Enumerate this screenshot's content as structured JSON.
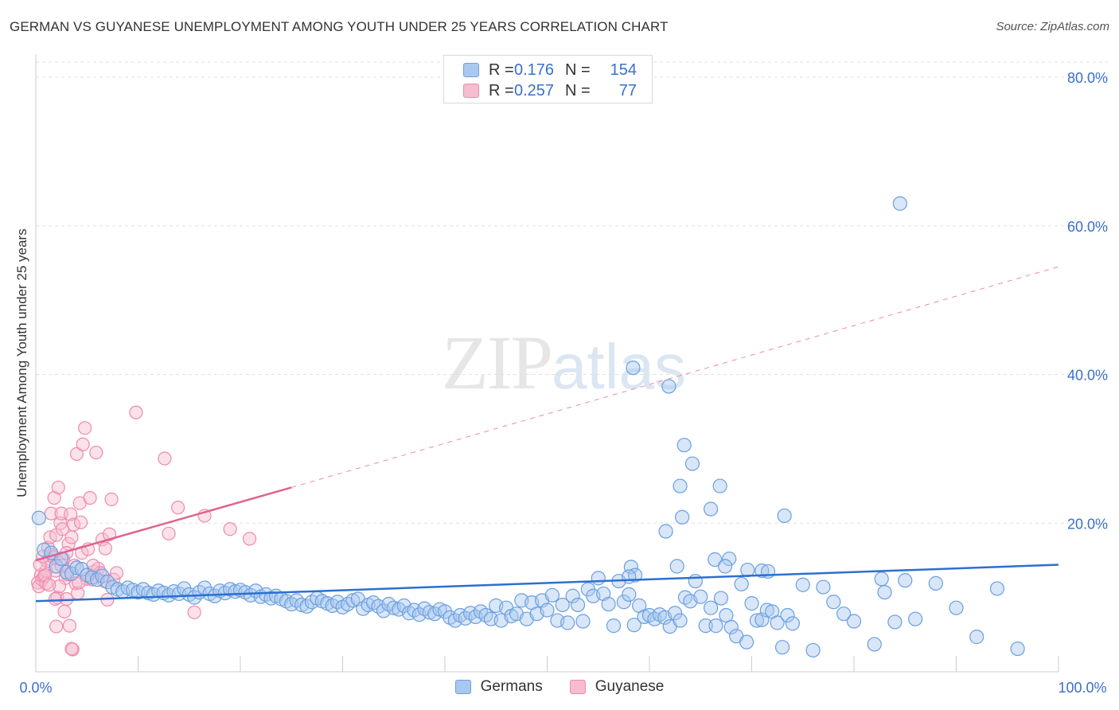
{
  "header": {
    "title": "GERMAN VS GUYANESE UNEMPLOYMENT AMONG YOUTH UNDER 25 YEARS CORRELATION CHART",
    "source": "Source: ZipAtlas.com"
  },
  "watermark": {
    "zip": "ZIP",
    "atlas": "atlas"
  },
  "legend": {
    "rows": [
      {
        "r_label": "R =",
        "r_value": "0.176",
        "n_label": "N =",
        "n_value": "154"
      },
      {
        "r_label": "R =",
        "r_value": "0.257",
        "n_label": "N =",
        "n_value": "77"
      }
    ]
  },
  "colors": {
    "blue_fill": "#a9c8f0",
    "blue_stroke": "#6a9fe0",
    "blue_line": "#2d6fd0",
    "pink_fill": "#f6bcd0",
    "pink_stroke": "#ee8aab",
    "pink_line": "#e0628e",
    "tick_label": "#3a6fd0",
    "grid": "#e0e0e0"
  },
  "chart_data": {
    "type": "scatter",
    "title": "GERMAN VS GUYANESE UNEMPLOYMENT AMONG YOUTH UNDER 25 YEARS CORRELATION CHART",
    "xlabel": "",
    "ylabel": "Unemployment Among Youth under 25 years",
    "xlim": [
      0,
      100
    ],
    "ylim": [
      0,
      80
    ],
    "x_tick_labels": [
      "0.0%",
      "100.0%"
    ],
    "y_ticks": [
      20,
      40,
      60,
      80
    ],
    "y_tick_labels": [
      "20.0%",
      "40.0%",
      "60.0%",
      "80.0%"
    ],
    "grid": true,
    "legend_position": "top-center",
    "series": [
      {
        "name": "Germans",
        "color": "#a9c8f0",
        "r": 0.176,
        "n": 154,
        "trend": {
          "x": [
            0,
            100
          ],
          "y": [
            9.5,
            14.4
          ],
          "style": "solid"
        },
        "points": [
          [
            0.3,
            20.7
          ],
          [
            0.8,
            16.4
          ],
          [
            1.5,
            16.0
          ],
          [
            2.0,
            14.2
          ],
          [
            2.5,
            15.2
          ],
          [
            3.0,
            13.4
          ],
          [
            3.5,
            13.2
          ],
          [
            4.0,
            14.0
          ],
          [
            4.5,
            13.8
          ],
          [
            5.0,
            13.0
          ],
          [
            5.5,
            12.7
          ],
          [
            6.0,
            12.4
          ],
          [
            6.5,
            12.9
          ],
          [
            7.0,
            12.1
          ],
          [
            7.5,
            11.4
          ],
          [
            8.0,
            11.1
          ],
          [
            8.5,
            10.8
          ],
          [
            9.0,
            11.3
          ],
          [
            9.5,
            11.0
          ],
          [
            10.0,
            10.7
          ],
          [
            10.5,
            11.1
          ],
          [
            11.0,
            10.6
          ],
          [
            11.5,
            10.4
          ],
          [
            12.0,
            10.9
          ],
          [
            12.5,
            10.6
          ],
          [
            13.0,
            10.3
          ],
          [
            13.5,
            10.8
          ],
          [
            14.0,
            10.5
          ],
          [
            14.5,
            11.2
          ],
          [
            15.0,
            10.4
          ],
          [
            15.5,
            10.0
          ],
          [
            16.0,
            10.7
          ],
          [
            16.5,
            11.3
          ],
          [
            17.0,
            10.5
          ],
          [
            17.5,
            10.2
          ],
          [
            18.0,
            10.9
          ],
          [
            18.5,
            10.6
          ],
          [
            19.0,
            11.1
          ],
          [
            19.5,
            10.8
          ],
          [
            20.0,
            11.0
          ],
          [
            20.5,
            10.7
          ],
          [
            21.0,
            10.3
          ],
          [
            21.5,
            10.9
          ],
          [
            22.0,
            10.1
          ],
          [
            22.5,
            10.4
          ],
          [
            23.0,
            9.9
          ],
          [
            23.5,
            10.2
          ],
          [
            24.0,
            9.8
          ],
          [
            24.5,
            9.5
          ],
          [
            25.0,
            9.1
          ],
          [
            25.5,
            9.6
          ],
          [
            26.0,
            9.0
          ],
          [
            26.5,
            8.8
          ],
          [
            27.0,
            9.4
          ],
          [
            27.5,
            9.9
          ],
          [
            28.0,
            9.5
          ],
          [
            28.5,
            9.2
          ],
          [
            29.0,
            8.9
          ],
          [
            29.5,
            9.4
          ],
          [
            30.0,
            8.7
          ],
          [
            30.5,
            9.1
          ],
          [
            31.0,
            9.6
          ],
          [
            31.5,
            9.8
          ],
          [
            32.0,
            8.5
          ],
          [
            32.5,
            9.0
          ],
          [
            33.0,
            9.3
          ],
          [
            33.5,
            8.8
          ],
          [
            34.0,
            8.2
          ],
          [
            34.5,
            9.1
          ],
          [
            35.0,
            8.6
          ],
          [
            35.5,
            8.4
          ],
          [
            36.0,
            8.9
          ],
          [
            36.5,
            7.9
          ],
          [
            37.0,
            8.3
          ],
          [
            37.5,
            7.7
          ],
          [
            38.0,
            8.5
          ],
          [
            38.5,
            8.0
          ],
          [
            39.0,
            7.8
          ],
          [
            39.5,
            8.4
          ],
          [
            40.0,
            8.1
          ],
          [
            40.5,
            7.3
          ],
          [
            41.0,
            6.9
          ],
          [
            41.5,
            7.6
          ],
          [
            42.0,
            7.2
          ],
          [
            42.5,
            7.9
          ],
          [
            43.0,
            7.4
          ],
          [
            43.5,
            8.1
          ],
          [
            44.0,
            7.6
          ],
          [
            44.5,
            7.1
          ],
          [
            45.0,
            8.9
          ],
          [
            45.5,
            6.9
          ],
          [
            46.0,
            8.6
          ],
          [
            46.5,
            7.5
          ],
          [
            47.0,
            7.8
          ],
          [
            47.5,
            9.6
          ],
          [
            48.0,
            7.1
          ],
          [
            48.5,
            9.3
          ],
          [
            49.0,
            7.8
          ],
          [
            49.5,
            9.6
          ],
          [
            50.0,
            8.3
          ],
          [
            50.5,
            10.3
          ],
          [
            51.0,
            6.9
          ],
          [
            51.5,
            9.0
          ],
          [
            52.0,
            6.6
          ],
          [
            52.5,
            10.2
          ],
          [
            53.0,
            9.0
          ],
          [
            53.5,
            6.8
          ],
          [
            54.0,
            11.1
          ],
          [
            54.5,
            10.2
          ],
          [
            55.0,
            12.6
          ],
          [
            55.5,
            10.5
          ],
          [
            56.0,
            9.1
          ],
          [
            56.5,
            6.2
          ],
          [
            57.0,
            12.2
          ],
          [
            57.5,
            9.4
          ],
          [
            58.0,
            10.4
          ],
          [
            58.5,
            6.3
          ],
          [
            59.0,
            8.9
          ],
          [
            59.5,
            7.4
          ],
          [
            60.0,
            7.6
          ],
          [
            60.5,
            7.1
          ],
          [
            61.0,
            7.7
          ],
          [
            61.5,
            7.3
          ],
          [
            62.0,
            6.1
          ],
          [
            62.5,
            7.9
          ],
          [
            63.0,
            6.9
          ],
          [
            63.5,
            10.0
          ],
          [
            64.0,
            9.5
          ],
          [
            64.5,
            12.2
          ],
          [
            65.0,
            10.1
          ],
          [
            65.5,
            6.2
          ],
          [
            66.0,
            8.6
          ],
          [
            66.5,
            6.2
          ],
          [
            67.0,
            9.9
          ],
          [
            67.5,
            7.6
          ],
          [
            68.0,
            6.0
          ],
          [
            68.5,
            4.8
          ],
          [
            69.0,
            11.8
          ],
          [
            69.5,
            4.0
          ],
          [
            70.0,
            9.2
          ],
          [
            70.5,
            6.9
          ],
          [
            71.0,
            7.0
          ],
          [
            71.5,
            8.3
          ],
          [
            72.0,
            8.1
          ],
          [
            72.5,
            6.6
          ],
          [
            73.0,
            3.3
          ],
          [
            73.5,
            7.6
          ],
          [
            74.0,
            6.5
          ],
          [
            75.0,
            11.7
          ],
          [
            76.0,
            2.9
          ],
          [
            77.0,
            11.4
          ],
          [
            78.0,
            9.4
          ],
          [
            79.0,
            7.8
          ],
          [
            80.0,
            6.8
          ],
          [
            82.0,
            3.7
          ],
          [
            83.0,
            10.7
          ],
          [
            84.0,
            6.7
          ],
          [
            85.0,
            12.3
          ],
          [
            86.0,
            7.1
          ],
          [
            88.0,
            11.9
          ],
          [
            90.0,
            8.6
          ],
          [
            92.0,
            4.7
          ],
          [
            94.0,
            11.2
          ],
          [
            96.0,
            3.1
          ]
        ],
        "highlight_points": [
          [
            61.6,
            18.9
          ],
          [
            64.2,
            28.0
          ],
          [
            63.2,
            20.8
          ],
          [
            66.0,
            21.9
          ],
          [
            66.4,
            15.1
          ],
          [
            67.8,
            15.2
          ],
          [
            69.6,
            13.7
          ],
          [
            71.0,
            13.6
          ],
          [
            67.4,
            14.2
          ],
          [
            62.7,
            14.2
          ],
          [
            58.2,
            14.1
          ],
          [
            58.6,
            13.0
          ],
          [
            58.0,
            12.8
          ],
          [
            58.4,
            40.9
          ],
          [
            61.9,
            38.4
          ],
          [
            63.4,
            30.5
          ],
          [
            63.0,
            25.0
          ],
          [
            66.9,
            25.0
          ],
          [
            73.2,
            21.0
          ],
          [
            71.6,
            13.5
          ],
          [
            84.5,
            63.0
          ],
          [
            82.7,
            12.5
          ]
        ]
      },
      {
        "name": "Guyanese",
        "color": "#f6bcd0",
        "r": 0.257,
        "n": 77,
        "trend": {
          "x": [
            0,
            25
          ],
          "y": [
            15.0,
            24.8
          ],
          "style": "solid"
        },
        "trend_extended": {
          "x": [
            25,
            100
          ],
          "y": [
            24.8,
            54.5
          ],
          "style": "dashed"
        },
        "points": [
          [
            0.2,
            12.0
          ],
          [
            0.3,
            11.5
          ],
          [
            0.5,
            13.0
          ],
          [
            0.6,
            12.4
          ],
          [
            0.8,
            12.8
          ],
          [
            1.0,
            13.6
          ],
          [
            1.1,
            14.9
          ],
          [
            1.2,
            16.7
          ],
          [
            1.4,
            18.1
          ],
          [
            1.5,
            21.3
          ],
          [
            1.6,
            15.7
          ],
          [
            1.7,
            15.4
          ],
          [
            1.8,
            23.4
          ],
          [
            1.9,
            13.6
          ],
          [
            2.0,
            18.4
          ],
          [
            2.1,
            10.0
          ],
          [
            2.2,
            24.8
          ],
          [
            2.4,
            20.0
          ],
          [
            2.5,
            21.3
          ],
          [
            2.6,
            19.2
          ],
          [
            2.7,
            15.2
          ],
          [
            2.9,
            12.6
          ],
          [
            3.0,
            9.8
          ],
          [
            3.1,
            13.1
          ],
          [
            3.2,
            17.2
          ],
          [
            3.4,
            21.2
          ],
          [
            3.5,
            18.1
          ],
          [
            3.7,
            19.8
          ],
          [
            3.8,
            14.3
          ],
          [
            3.9,
            11.9
          ],
          [
            4.0,
            29.3
          ],
          [
            4.1,
            10.6
          ],
          [
            4.3,
            22.7
          ],
          [
            4.4,
            20.1
          ],
          [
            4.5,
            16.0
          ],
          [
            4.6,
            30.6
          ],
          [
            4.8,
            32.8
          ],
          [
            5.0,
            12.5
          ],
          [
            5.1,
            16.5
          ],
          [
            5.3,
            23.4
          ],
          [
            5.5,
            12.4
          ],
          [
            5.7,
            13.5
          ],
          [
            5.9,
            29.5
          ],
          [
            6.1,
            13.9
          ],
          [
            6.3,
            13.3
          ],
          [
            6.5,
            17.8
          ],
          [
            6.7,
            12.2
          ],
          [
            7.0,
            9.7
          ],
          [
            7.2,
            18.5
          ],
          [
            7.4,
            23.2
          ],
          [
            7.6,
            12.4
          ],
          [
            7.9,
            13.3
          ],
          [
            9.8,
            34.9
          ],
          [
            12.6,
            28.7
          ],
          [
            13.0,
            18.6
          ],
          [
            13.9,
            22.1
          ],
          [
            15.5,
            8.0
          ],
          [
            16.5,
            21.0
          ],
          [
            19.0,
            19.2
          ],
          [
            20.9,
            17.9
          ],
          [
            2.3,
            11.5
          ],
          [
            2.8,
            8.1
          ],
          [
            3.3,
            6.2
          ],
          [
            3.6,
            3.0
          ],
          [
            2.0,
            6.1
          ],
          [
            1.0,
            11.9
          ],
          [
            0.9,
            13.0
          ],
          [
            1.3,
            11.7
          ],
          [
            0.4,
            14.4
          ],
          [
            0.7,
            15.5
          ],
          [
            1.9,
            9.8
          ],
          [
            2.5,
            14.3
          ],
          [
            3.0,
            16.0
          ],
          [
            4.2,
            12.0
          ],
          [
            5.6,
            14.3
          ],
          [
            6.8,
            16.6
          ],
          [
            3.5,
            3.1
          ]
        ]
      }
    ]
  }
}
